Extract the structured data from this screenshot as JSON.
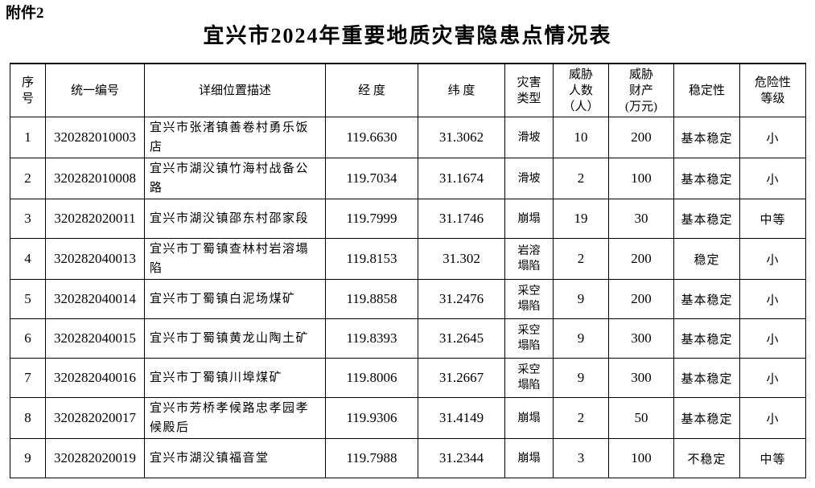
{
  "page": {
    "attachment_label": "附件2",
    "title": "宜兴市2024年重要地质灾害隐患点情况表"
  },
  "table": {
    "headers": [
      "序\n号",
      "统一编号",
      "详细位置描述",
      "经 度",
      "纬 度",
      "灾害\n类型",
      "威胁\n人数\n（人）",
      "威胁\n财产\n(万元)",
      "稳定性",
      "危险性\n等级"
    ],
    "rows": [
      [
        "1",
        "320282010003",
        "宜兴市张渚镇善卷村勇乐饭店",
        "119.6630",
        "31.3062",
        "滑坡",
        "10",
        "200",
        "基本稳定",
        "小"
      ],
      [
        "2",
        "320282010008",
        "宜兴市湖㳇镇竹海村战备公路",
        "119.7034",
        "31.1674",
        "滑坡",
        "2",
        "100",
        "基本稳定",
        "小"
      ],
      [
        "3",
        "320282020011",
        "宜兴市湖㳇镇邵东村邵家段",
        "119.7999",
        "31.1746",
        "崩塌",
        "19",
        "30",
        "基本稳定",
        "中等"
      ],
      [
        "4",
        "320282040013",
        "宜兴市丁蜀镇查林村岩溶塌陷",
        "119.8153",
        "31.302",
        "岩溶\n塌陷",
        "2",
        "200",
        "稳定",
        "小"
      ],
      [
        "5",
        "320282040014",
        "宜兴市丁蜀镇白泥场煤矿",
        "119.8858",
        "31.2476",
        "采空\n塌陷",
        "9",
        "200",
        "基本稳定",
        "小"
      ],
      [
        "6",
        "320282040015",
        "宜兴市丁蜀镇黄龙山陶土矿",
        "119.8393",
        "31.2645",
        "采空\n塌陷",
        "9",
        "300",
        "基本稳定",
        "小"
      ],
      [
        "7",
        "320282040016",
        "宜兴市丁蜀镇川埠煤矿",
        "119.8006",
        "31.2667",
        "采空\n塌陷",
        "9",
        "300",
        "基本稳定",
        "小"
      ],
      [
        "8",
        "320282020017",
        "宜兴市芳桥孝候路忠孝园孝候殿后",
        "119.9306",
        "31.4149",
        "崩塌",
        "2",
        "50",
        "基本稳定",
        "小"
      ],
      [
        "9",
        "320282020019",
        "宜兴市湖㳇镇福音堂",
        "119.7988",
        "31.2344",
        "崩塌",
        "3",
        "100",
        "不稳定",
        "中等"
      ]
    ]
  }
}
